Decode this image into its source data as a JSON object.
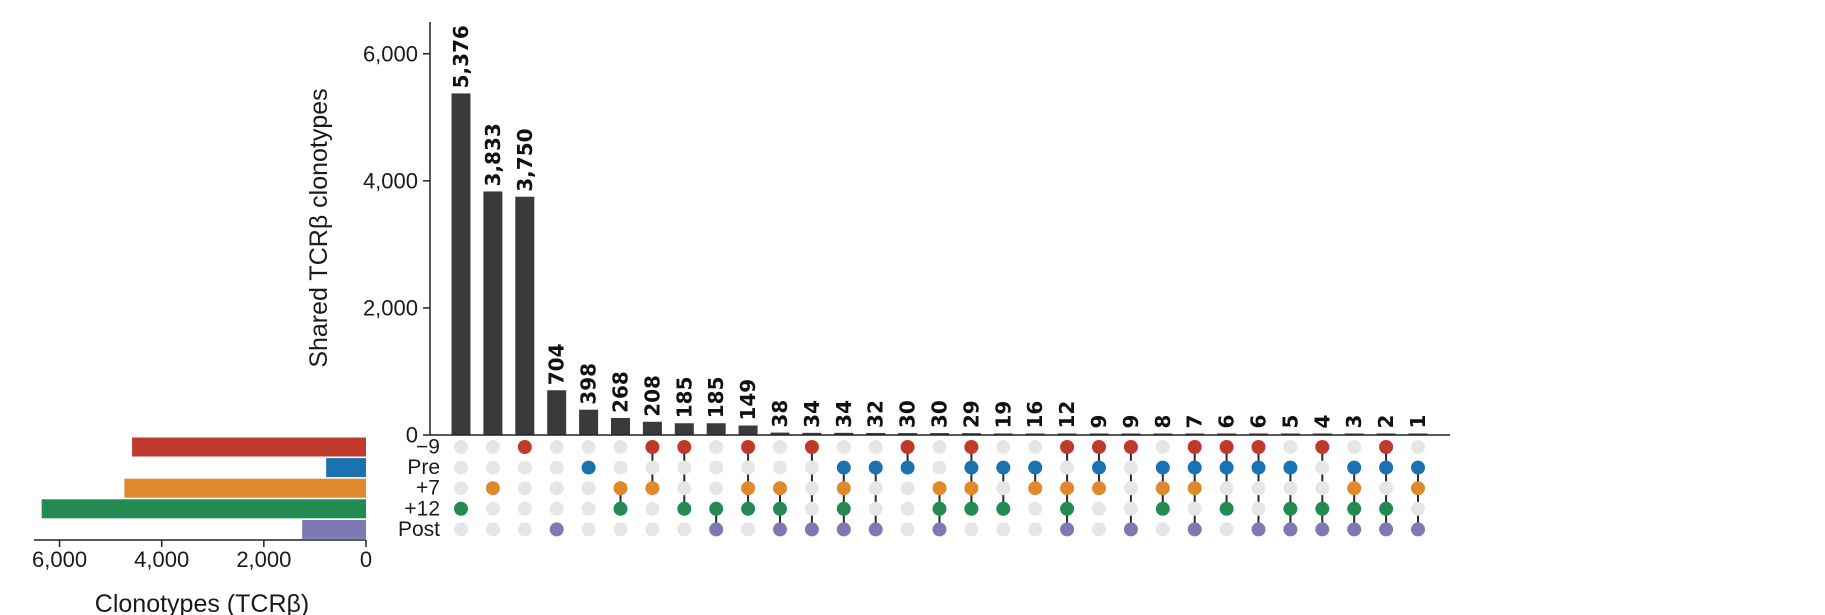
{
  "chart_data": {
    "type": "bar",
    "subtype": "upset",
    "bar_color": "#3a3a3a",
    "inactive_dot_color": "#e6e6e6",
    "sets": [
      {
        "name": "−9",
        "size": 4580,
        "color": "#c0392b"
      },
      {
        "name": "Pre",
        "size": 780,
        "color": "#1a73b0"
      },
      {
        "name": "+7",
        "size": 4730,
        "color": "#e0892a"
      },
      {
        "name": "+12",
        "size": 6350,
        "color": "#238a52"
      },
      {
        "name": "Post",
        "size": 1250,
        "color": "#7d7ab3"
      }
    ],
    "intersections": [
      {
        "value": 5376,
        "label": "5,376",
        "members": [
          3
        ]
      },
      {
        "value": 3833,
        "label": "3,833",
        "members": [
          2
        ]
      },
      {
        "value": 3750,
        "label": "3,750",
        "members": [
          0
        ]
      },
      {
        "value": 704,
        "label": "704",
        "members": [
          4
        ]
      },
      {
        "value": 398,
        "label": "398",
        "members": [
          1
        ]
      },
      {
        "value": 268,
        "label": "268",
        "members": [
          2,
          3
        ]
      },
      {
        "value": 208,
        "label": "208",
        "members": [
          0,
          2
        ]
      },
      {
        "value": 185,
        "label": "185",
        "members": [
          0,
          3
        ]
      },
      {
        "value": 185,
        "label": "185",
        "members": [
          3,
          4
        ]
      },
      {
        "value": 149,
        "label": "149",
        "members": [
          0,
          2,
          3
        ]
      },
      {
        "value": 38,
        "label": "38",
        "members": [
          2,
          3,
          4
        ]
      },
      {
        "value": 34,
        "label": "34",
        "members": [
          0,
          4
        ]
      },
      {
        "value": 34,
        "label": "34",
        "members": [
          1,
          2,
          3,
          4
        ]
      },
      {
        "value": 32,
        "label": "32",
        "members": [
          1,
          4
        ]
      },
      {
        "value": 30,
        "label": "30",
        "members": [
          0,
          1
        ]
      },
      {
        "value": 30,
        "label": "30",
        "members": [
          2,
          3,
          4
        ]
      },
      {
        "value": 29,
        "label": "29",
        "members": [
          0,
          1,
          2,
          3
        ]
      },
      {
        "value": 19,
        "label": "19",
        "members": [
          1,
          3
        ]
      },
      {
        "value": 16,
        "label": "16",
        "members": [
          1,
          2
        ]
      },
      {
        "value": 12,
        "label": "12",
        "members": [
          0,
          2,
          3,
          4
        ]
      },
      {
        "value": 9,
        "label": "9",
        "members": [
          0,
          1,
          2
        ]
      },
      {
        "value": 9,
        "label": "9",
        "members": [
          0,
          4
        ]
      },
      {
        "value": 8,
        "label": "8",
        "members": [
          1,
          2,
          3
        ]
      },
      {
        "value": 7,
        "label": "7",
        "members": [
          0,
          1,
          2,
          4
        ]
      },
      {
        "value": 6,
        "label": "6",
        "members": [
          0,
          1,
          3
        ]
      },
      {
        "value": 6,
        "label": "6",
        "members": [
          0,
          1,
          4
        ]
      },
      {
        "value": 5,
        "label": "5",
        "members": [
          1,
          3,
          4
        ]
      },
      {
        "value": 4,
        "label": "4",
        "members": [
          0,
          3,
          4
        ]
      },
      {
        "value": 3,
        "label": "3",
        "members": [
          1,
          2,
          3,
          4
        ]
      },
      {
        "value": 2,
        "label": "2",
        "members": [
          0,
          1,
          3,
          4
        ]
      },
      {
        "value": 1,
        "label": "1",
        "members": [
          1,
          2,
          4
        ]
      }
    ],
    "bar_axis": {
      "ylabel": "Shared TCRβ clonotypes",
      "ylim": [
        0,
        6500
      ],
      "ticks": [
        0,
        2000,
        4000,
        6000
      ],
      "tick_labels": [
        "0",
        "2,000",
        "4,000",
        "6,000"
      ]
    },
    "set_size_axis": {
      "xlabel": "Clonotypes (TCRβ)",
      "xlim": [
        0,
        6500
      ],
      "reversed": true,
      "ticks": [
        0,
        2000,
        4000,
        6000
      ],
      "tick_labels": [
        "0",
        "2,000",
        "4,000",
        "6,000"
      ]
    },
    "grid": false,
    "legend": "none"
  }
}
